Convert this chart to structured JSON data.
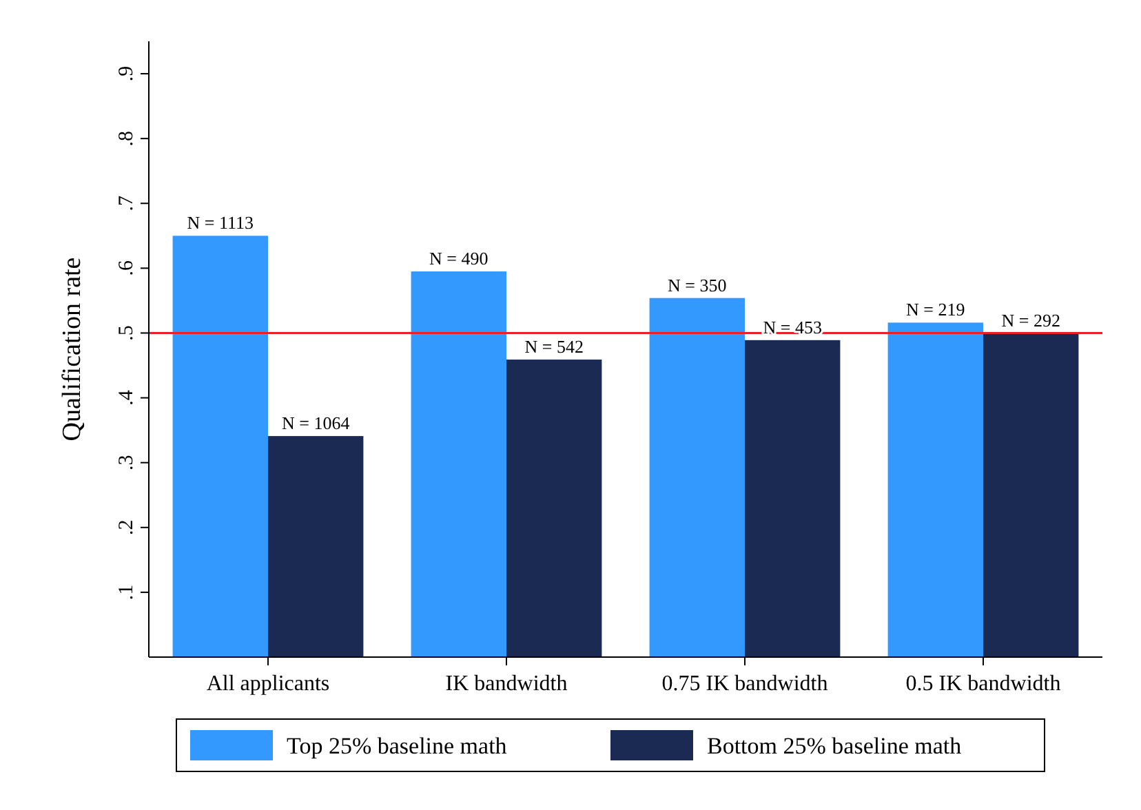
{
  "chart_data": {
    "type": "bar",
    "ylabel": "Qualification rate",
    "categories": [
      "All applicants",
      "IK bandwidth",
      "0.75 IK bandwidth",
      "0.5 IK bandwidth"
    ],
    "series": [
      {
        "name": "Top 25% baseline math",
        "color": "#3399ff",
        "values": [
          0.65,
          0.595,
          0.554,
          0.516
        ]
      },
      {
        "name": "Bottom 25% baseline math",
        "color": "#1a2a52",
        "values": [
          0.341,
          0.459,
          0.489,
          0.499
        ]
      }
    ],
    "annotations": [
      {
        "text": "N = 1113",
        "x": "All applicants",
        "y": 0.65
      },
      {
        "text": "N = 490",
        "x": "IK bandwidth",
        "y": 0.595
      },
      {
        "text": "N = 350",
        "x": "0.75 IK bandwidth",
        "y": 0.554
      },
      {
        "text": "N = 219",
        "x": "0.5 IK bandwidth",
        "y": 0.516
      },
      {
        "text": "N = 1064",
        "x": "All applicants",
        "y": 0.341
      },
      {
        "text": "N = 542",
        "x": "IK bandwidth",
        "y": 0.459
      },
      {
        "text": "N = 453",
        "x": "0.75 IK bandwidth",
        "y": 0.489
      },
      {
        "text": "N = 292",
        "x": "0.5 IK bandwidth",
        "y": 0.499
      }
    ],
    "ylim": [
      0,
      0.95
    ],
    "yticks": [
      {
        "value": 0.1,
        "label": ".1"
      },
      {
        "value": 0.2,
        "label": ".2"
      },
      {
        "value": 0.3,
        "label": ".3"
      },
      {
        "value": 0.4,
        "label": ".4"
      },
      {
        "value": 0.5,
        "label": ".5"
      },
      {
        "value": 0.6,
        "label": ".6"
      },
      {
        "value": 0.7,
        "label": ".7"
      },
      {
        "value": 0.8,
        "label": ".8"
      },
      {
        "value": 0.9,
        "label": ".9"
      }
    ],
    "ref_lines": [
      {
        "axis": "y",
        "value": 0.5,
        "color": "#e8202a"
      }
    ],
    "grid": false,
    "legend": "bottom"
  }
}
